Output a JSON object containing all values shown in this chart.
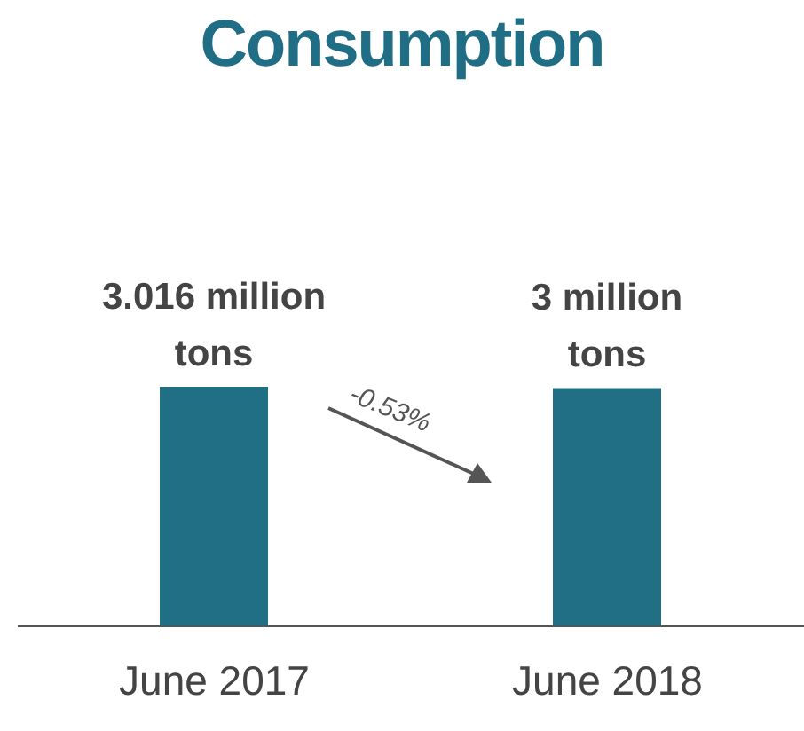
{
  "chart_data": {
    "type": "bar",
    "title": "Consumption",
    "categories": [
      "June 2017",
      "June 2018"
    ],
    "tick_labels": "x",
    "values": [
      3.016,
      3
    ],
    "value_labels": [
      "3.016 million tons",
      "3 million tons"
    ],
    "color": "#206f84",
    "annotations": [
      "-0.53%"
    ]
  }
}
